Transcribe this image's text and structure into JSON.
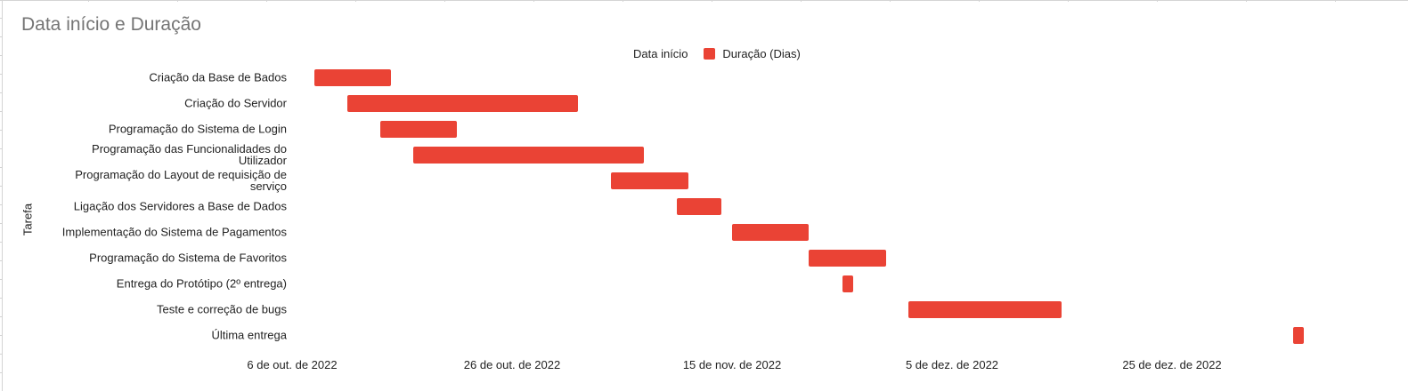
{
  "chart_data": {
    "type": "gantt",
    "title": "Data início e Duração",
    "legend": [
      "Data início",
      "Duração (Dias)"
    ],
    "legend_position": "top",
    "ylabel": "Tarefa",
    "x_ticks": [
      "6 de out. de 2022",
      "26 de out. de 2022",
      "15 de nov. de 2022",
      "5 de dez. de 2022",
      "25 de dez. de 2022"
    ],
    "xlim": [
      "2022-10-06",
      "2023-01-09"
    ],
    "tasks": [
      {
        "label": "Criação da Base de Bados",
        "lines": [
          "Criação da Base de Bados"
        ],
        "start": "2022-10-08",
        "duration": 7
      },
      {
        "label": "Criação do Servidor",
        "lines": [
          "Criação do Servidor"
        ],
        "start": "2022-10-11",
        "duration": 21
      },
      {
        "label": "Programação do Sistema de Login",
        "lines": [
          "Programação do Sistema de Login"
        ],
        "start": "2022-10-14",
        "duration": 7
      },
      {
        "label": "Programação das Funcionalidades do Utilizador",
        "lines": [
          "Programação das Funcionalidades do",
          "Utilizador"
        ],
        "start": "2022-10-17",
        "duration": 21
      },
      {
        "label": "Programação do Layout de requisição de serviço",
        "lines": [
          "Programação do Layout de requisição de",
          "serviço"
        ],
        "start": "2022-11-04",
        "duration": 7
      },
      {
        "label": "Ligação dos Servidores a Base de Dados",
        "lines": [
          "Ligação dos Servidores a Base de Dados"
        ],
        "start": "2022-11-10",
        "duration": 4
      },
      {
        "label": "Implementação do Sistema de Pagamentos",
        "lines": [
          "Implementação do Sistema de Pagamentos"
        ],
        "start": "2022-11-15",
        "duration": 7
      },
      {
        "label": "Programação do Sistema de Favoritos",
        "lines": [
          "Programação do Sistema de Favoritos"
        ],
        "start": "2022-11-22",
        "duration": 7
      },
      {
        "label": "Entrega do Protótipo (2º entrega)",
        "lines": [
          "Entrega do Protótipo (2º entrega)"
        ],
        "start": "2022-11-25",
        "duration": 1
      },
      {
        "label": "Teste e correção de bugs",
        "lines": [
          "Teste e correção de bugs"
        ],
        "start": "2022-12-01",
        "duration": 14
      },
      {
        "label": "Última entrega",
        "lines": [
          "Última entrega"
        ],
        "start": "2023-01-05",
        "duration": 1
      }
    ],
    "bar_color": "#ea4335",
    "grid": false
  }
}
